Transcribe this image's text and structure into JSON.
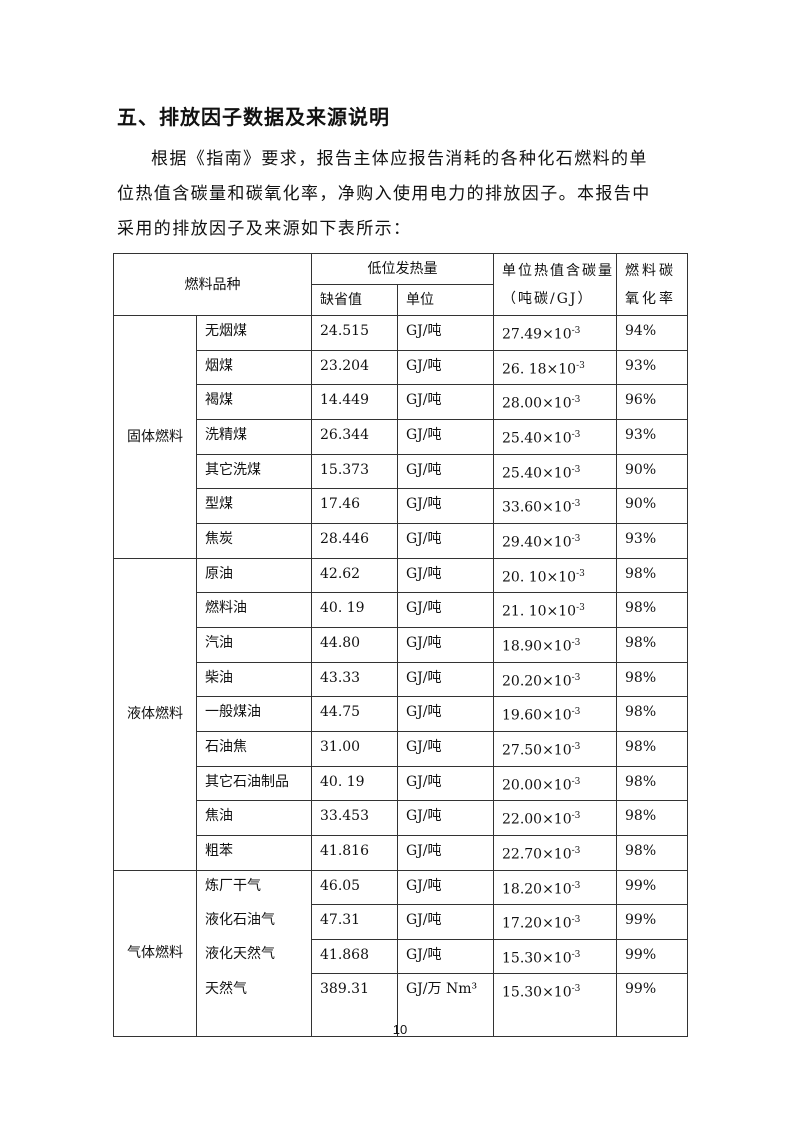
{
  "section_title": "五、排放因子数据及来源说明",
  "paragraph": [
    "根据《指南》要求，报告主体应报告消耗的各种化石燃料的单",
    "位热值含碳量和碳氧化率，净购入使用电力的排放因子。本报告中",
    "采用的排放因子及来源如下表所示："
  ],
  "table": {
    "headers": {
      "fuel_type": "燃料品种",
      "ncv": "低位发热量",
      "default_value": "缺省值",
      "unit": "单位",
      "carbon_content": "单位热值含碳量（吨碳/GJ）",
      "oxidation_rate": "燃料碳氧化率"
    },
    "groups": [
      {
        "name": "固体燃料",
        "rows": [
          {
            "fuel": "无烟煤",
            "value": "24.515",
            "unit": "GJ/吨",
            "carbon": "27.49×10",
            "exp": "-3",
            "rate": "94%"
          },
          {
            "fuel": "烟煤",
            "value": "23.204",
            "unit": "GJ/吨",
            "carbon": "26. 18×10",
            "exp": "-3",
            "rate": "93%"
          },
          {
            "fuel": "褐煤",
            "value": "14.449",
            "unit": "GJ/吨",
            "carbon": "28.00×10",
            "exp": "-3",
            "rate": "96%"
          },
          {
            "fuel": "洗精煤",
            "value": "26.344",
            "unit": "GJ/吨",
            "carbon": "25.40×10",
            "exp": "-3",
            "rate": "93%"
          },
          {
            "fuel": "其它洗煤",
            "value": "15.373",
            "unit": "GJ/吨",
            "carbon": "25.40×10",
            "exp": "-3",
            "rate": "90%"
          },
          {
            "fuel": "型煤",
            "value": "17.46",
            "unit": "GJ/吨",
            "carbon": "33.60×10",
            "exp": "-3",
            "rate": "90%"
          },
          {
            "fuel": "焦炭",
            "value": "28.446",
            "unit": "GJ/吨",
            "carbon": "29.40×10",
            "exp": "-3",
            "rate": "93%"
          }
        ]
      },
      {
        "name": "液体燃料",
        "rows": [
          {
            "fuel": "原油",
            "value": "42.62",
            "unit": "GJ/吨",
            "carbon": "20. 10×10",
            "exp": "-3",
            "rate": "98%"
          },
          {
            "fuel": "燃料油",
            "value": "40. 19",
            "unit": "GJ/吨",
            "carbon": "21. 10×10",
            "exp": "-3",
            "rate": "98%"
          },
          {
            "fuel": "汽油",
            "value": "44.80",
            "unit": "GJ/吨",
            "carbon": "18.90×10",
            "exp": "-3",
            "rate": "98%"
          },
          {
            "fuel": "柴油",
            "value": "43.33",
            "unit": "GJ/吨",
            "carbon": "20.20×10",
            "exp": "-3",
            "rate": "98%"
          },
          {
            "fuel": "一般煤油",
            "value": "44.75",
            "unit": "GJ/吨",
            "carbon": "19.60×10",
            "exp": "-3",
            "rate": "98%"
          },
          {
            "fuel": "石油焦",
            "value": "31.00",
            "unit": "GJ/吨",
            "carbon": "27.50×10",
            "exp": "-3",
            "rate": "98%"
          },
          {
            "fuel": "其它石油制品",
            "value": "40. 19",
            "unit": "GJ/吨",
            "carbon": "20.00×10",
            "exp": "-3",
            "rate": "98%"
          },
          {
            "fuel": "焦油",
            "value": "33.453",
            "unit": "GJ/吨",
            "carbon": "22.00×10",
            "exp": "-3",
            "rate": "98%"
          },
          {
            "fuel": "粗苯",
            "value": "41.816",
            "unit": "GJ/吨",
            "carbon": "22.70×10",
            "exp": "-3",
            "rate": "98%"
          }
        ]
      },
      {
        "name": "气体燃料",
        "rows": [
          {
            "fuel": "炼厂干气",
            "value": "46.05",
            "unit": "GJ/吨",
            "carbon": "18.20×10",
            "exp": "-3",
            "rate": "99%"
          },
          {
            "fuel": "液化石油气",
            "value": "47.31",
            "unit": "GJ/吨",
            "carbon": "17.20×10",
            "exp": "-3",
            "rate": "99%"
          },
          {
            "fuel": "液化天然气",
            "value": "41.868",
            "unit": "GJ/吨",
            "carbon": "15.30×10",
            "exp": "-3",
            "rate": "99%"
          },
          {
            "fuel": "天然气",
            "value": "389.31",
            "unit": "GJ/万 Nm³",
            "carbon": "15.30×10",
            "exp": "-3",
            "rate": "99%"
          }
        ]
      }
    ]
  },
  "page_number": "10"
}
